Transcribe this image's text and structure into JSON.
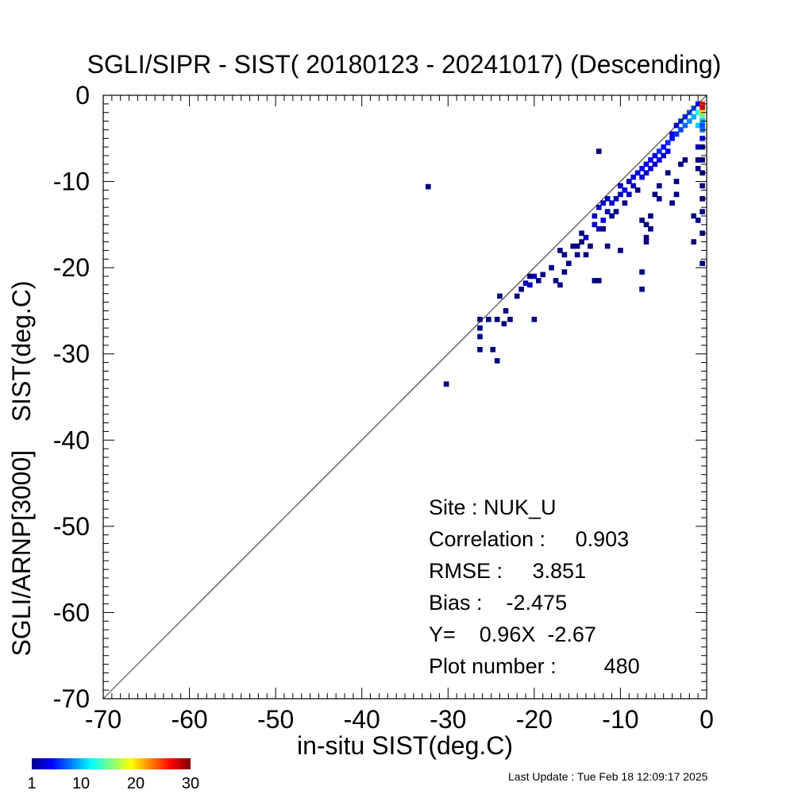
{
  "chart_data": {
    "type": "heatmap",
    "title": "SGLI/SIPR - SIST( 20180123 - 20241017) (Descending)",
    "xlabel": "in-situ SIST(deg.C)",
    "ylabel": "SGLI/ARNP[3000]    SIST(deg.C)",
    "xlim": [
      -70,
      0
    ],
    "ylim": [
      -70,
      0
    ],
    "xticks": [
      "-70",
      "-60",
      "-50",
      "-40",
      "-30",
      "-20",
      "-10",
      "0"
    ],
    "yticks": [
      "-70",
      "-60",
      "-50",
      "-40",
      "-30",
      "-20",
      "-10",
      "0"
    ],
    "reference_line": "y = x",
    "bin_size": 0.5,
    "colorbar": {
      "min": 1,
      "max": 30,
      "ticks": [
        "1",
        "10",
        "20",
        "30"
      ],
      "colormap": "jet"
    },
    "points": [
      {
        "x": -32.3,
        "y": -10.6,
        "count": 1
      },
      {
        "x": -30.2,
        "y": -33.5,
        "count": 1
      },
      {
        "x": -26.3,
        "y": -26.0,
        "count": 1
      },
      {
        "x": -26.3,
        "y": -27.0,
        "count": 1
      },
      {
        "x": -26.3,
        "y": -28.0,
        "count": 1
      },
      {
        "x": -26.3,
        "y": -29.5,
        "count": 1
      },
      {
        "x": -25.3,
        "y": -26.0,
        "count": 1
      },
      {
        "x": -24.8,
        "y": -29.5,
        "count": 1
      },
      {
        "x": -24.3,
        "y": -30.8,
        "count": 1
      },
      {
        "x": -24.0,
        "y": -23.3,
        "count": 1
      },
      {
        "x": -24.3,
        "y": -26.0,
        "count": 1
      },
      {
        "x": -23.5,
        "y": -26.5,
        "count": 1
      },
      {
        "x": -23.3,
        "y": -25.0,
        "count": 1
      },
      {
        "x": -22.8,
        "y": -26.0,
        "count": 1
      },
      {
        "x": -22.0,
        "y": -23.3,
        "count": 1
      },
      {
        "x": -21.5,
        "y": -22.5,
        "count": 1
      },
      {
        "x": -21.0,
        "y": -21.8,
        "count": 2
      },
      {
        "x": -20.5,
        "y": -22.0,
        "count": 2
      },
      {
        "x": -20.0,
        "y": -21.0,
        "count": 2
      },
      {
        "x": -20.5,
        "y": -21.0,
        "count": 1
      },
      {
        "x": -19.5,
        "y": -21.5,
        "count": 1
      },
      {
        "x": -19.0,
        "y": -20.8,
        "count": 1
      },
      {
        "x": -20.0,
        "y": -26.0,
        "count": 1
      },
      {
        "x": -18.0,
        "y": -20.0,
        "count": 1
      },
      {
        "x": -17.5,
        "y": -21.5,
        "count": 1
      },
      {
        "x": -17.0,
        "y": -22.0,
        "count": 1
      },
      {
        "x": -16.5,
        "y": -20.5,
        "count": 1
      },
      {
        "x": -16.0,
        "y": -19.5,
        "count": 1
      },
      {
        "x": -17.0,
        "y": -18.0,
        "count": 1
      },
      {
        "x": -16.5,
        "y": -18.5,
        "count": 1
      },
      {
        "x": -15.5,
        "y": -17.5,
        "count": 1
      },
      {
        "x": -15.0,
        "y": -17.5,
        "count": 1
      },
      {
        "x": -15.0,
        "y": -18.5,
        "count": 1
      },
      {
        "x": -14.5,
        "y": -17.0,
        "count": 1
      },
      {
        "x": -14.0,
        "y": -16.5,
        "count": 2
      },
      {
        "x": -14.5,
        "y": -16.0,
        "count": 1
      },
      {
        "x": -13.5,
        "y": -17.5,
        "count": 1
      },
      {
        "x": -13.0,
        "y": -15.0,
        "count": 2
      },
      {
        "x": -13.0,
        "y": -14.0,
        "count": 2
      },
      {
        "x": -12.5,
        "y": -15.5,
        "count": 2
      },
      {
        "x": -12.5,
        "y": -13.0,
        "count": 2
      },
      {
        "x": -12.0,
        "y": -14.5,
        "count": 3
      },
      {
        "x": -12.0,
        "y": -12.5,
        "count": 2
      },
      {
        "x": -12.0,
        "y": -15.5,
        "count": 1
      },
      {
        "x": -11.5,
        "y": -13.5,
        "count": 2
      },
      {
        "x": -11.5,
        "y": -12.0,
        "count": 2
      },
      {
        "x": -11.0,
        "y": -12.5,
        "count": 2
      },
      {
        "x": -11.0,
        "y": -14.0,
        "count": 1
      },
      {
        "x": -10.5,
        "y": -12.0,
        "count": 2
      },
      {
        "x": -10.5,
        "y": -13.5,
        "count": 1
      },
      {
        "x": -10.0,
        "y": -11.5,
        "count": 2
      },
      {
        "x": -10.0,
        "y": -10.5,
        "count": 2
      },
      {
        "x": -9.5,
        "y": -11.0,
        "count": 3
      },
      {
        "x": -9.5,
        "y": -12.5,
        "count": 1
      },
      {
        "x": -9.0,
        "y": -10.0,
        "count": 2
      },
      {
        "x": -9.0,
        "y": -11.5,
        "count": 2
      },
      {
        "x": -8.5,
        "y": -9.5,
        "count": 3
      },
      {
        "x": -8.5,
        "y": -10.5,
        "count": 2
      },
      {
        "x": -8.0,
        "y": -9.0,
        "count": 3
      },
      {
        "x": -8.0,
        "y": -11.0,
        "count": 1
      },
      {
        "x": -7.5,
        "y": -8.5,
        "count": 4
      },
      {
        "x": -7.5,
        "y": -9.5,
        "count": 3
      },
      {
        "x": -7.0,
        "y": -8.0,
        "count": 3
      },
      {
        "x": -7.0,
        "y": -9.0,
        "count": 2
      },
      {
        "x": -6.5,
        "y": -7.5,
        "count": 4
      },
      {
        "x": -6.5,
        "y": -8.5,
        "count": 3
      },
      {
        "x": -6.0,
        "y": -7.0,
        "count": 3
      },
      {
        "x": -6.0,
        "y": -8.0,
        "count": 2
      },
      {
        "x": -5.5,
        "y": -6.5,
        "count": 5
      },
      {
        "x": -5.5,
        "y": -7.5,
        "count": 3
      },
      {
        "x": -5.0,
        "y": -6.0,
        "count": 4
      },
      {
        "x": -5.0,
        "y": -7.0,
        "count": 2
      },
      {
        "x": -4.5,
        "y": -5.5,
        "count": 5
      },
      {
        "x": -4.5,
        "y": -6.5,
        "count": 3
      },
      {
        "x": -4.0,
        "y": -5.0,
        "count": 4
      },
      {
        "x": -4.0,
        "y": -4.5,
        "count": 3
      },
      {
        "x": -3.5,
        "y": -4.5,
        "count": 5
      },
      {
        "x": -3.5,
        "y": -3.5,
        "count": 4
      },
      {
        "x": -3.0,
        "y": -4.0,
        "count": 6
      },
      {
        "x": -3.0,
        "y": -3.0,
        "count": 5
      },
      {
        "x": -2.5,
        "y": -3.5,
        "count": 7
      },
      {
        "x": -2.5,
        "y": -2.5,
        "count": 5
      },
      {
        "x": -2.0,
        "y": -2.0,
        "count": 6
      },
      {
        "x": -2.0,
        "y": -3.0,
        "count": 8
      },
      {
        "x": -1.5,
        "y": -2.5,
        "count": 9
      },
      {
        "x": -1.5,
        "y": -1.5,
        "count": 6
      },
      {
        "x": -1.0,
        "y": -2.0,
        "count": 12
      },
      {
        "x": -1.0,
        "y": -3.5,
        "count": 10
      },
      {
        "x": -1.0,
        "y": -1.0,
        "count": 4
      },
      {
        "x": -0.5,
        "y": -1.0,
        "count": 25
      },
      {
        "x": -0.5,
        "y": -1.5,
        "count": 28
      },
      {
        "x": -0.5,
        "y": -2.0,
        "count": 20
      },
      {
        "x": -0.5,
        "y": -2.5,
        "count": 14
      },
      {
        "x": -0.5,
        "y": -3.0,
        "count": 9
      },
      {
        "x": -0.5,
        "y": -3.5,
        "count": 6
      },
      {
        "x": -0.5,
        "y": -4.0,
        "count": 7
      },
      {
        "x": -0.5,
        "y": -5.0,
        "count": 3
      },
      {
        "x": -0.5,
        "y": -6.0,
        "count": 1
      },
      {
        "x": -0.5,
        "y": -7.5,
        "count": 1
      },
      {
        "x": -0.5,
        "y": -9.0,
        "count": 1
      },
      {
        "x": -0.5,
        "y": -10.5,
        "count": 1
      },
      {
        "x": -0.5,
        "y": -12.0,
        "count": 1
      },
      {
        "x": -0.5,
        "y": -13.5,
        "count": 1
      },
      {
        "x": -0.5,
        "y": -16.0,
        "count": 1
      },
      {
        "x": -0.5,
        "y": -19.5,
        "count": 1
      },
      {
        "x": -1.0,
        "y": -6.0,
        "count": 2
      },
      {
        "x": -1.0,
        "y": -7.5,
        "count": 1
      },
      {
        "x": -1.0,
        "y": -8.5,
        "count": 1
      },
      {
        "x": -1.0,
        "y": -14.5,
        "count": 1
      },
      {
        "x": -1.5,
        "y": -17.0,
        "count": 1
      },
      {
        "x": -1.5,
        "y": -14.0,
        "count": 1
      },
      {
        "x": -2.5,
        "y": -7.5,
        "count": 1
      },
      {
        "x": -3.0,
        "y": -8.0,
        "count": 1
      },
      {
        "x": -3.5,
        "y": -10.0,
        "count": 1
      },
      {
        "x": -3.5,
        "y": -11.5,
        "count": 1
      },
      {
        "x": -4.0,
        "y": -12.5,
        "count": 1
      },
      {
        "x": -4.5,
        "y": -9.0,
        "count": 1
      },
      {
        "x": -5.5,
        "y": -10.5,
        "count": 1
      },
      {
        "x": -5.5,
        "y": -12.0,
        "count": 1
      },
      {
        "x": -6.0,
        "y": -11.5,
        "count": 1
      },
      {
        "x": -6.5,
        "y": -14.0,
        "count": 1
      },
      {
        "x": -6.5,
        "y": -15.5,
        "count": 1
      },
      {
        "x": -7.5,
        "y": -14.5,
        "count": 1
      },
      {
        "x": -7.0,
        "y": -15.0,
        "count": 1
      },
      {
        "x": -7.0,
        "y": -17.0,
        "count": 1
      },
      {
        "x": -7.0,
        "y": -16.5,
        "count": 1
      },
      {
        "x": -7.5,
        "y": -20.5,
        "count": 1
      },
      {
        "x": -7.5,
        "y": -22.5,
        "count": 1
      },
      {
        "x": -10.0,
        "y": -18.0,
        "count": 1
      },
      {
        "x": -11.5,
        "y": -17.5,
        "count": 1
      },
      {
        "x": -12.5,
        "y": -21.5,
        "count": 1
      },
      {
        "x": -12.5,
        "y": -6.5,
        "count": 1
      },
      {
        "x": -13.0,
        "y": -21.5,
        "count": 1
      },
      {
        "x": -14.0,
        "y": -18.5,
        "count": 1
      }
    ]
  },
  "stats": {
    "site": "Site : NUK_U",
    "correlation": "Correlation :     0.903",
    "rmse": "RMSE :     3.851",
    "bias": "Bias :    -2.475",
    "regression": "Y=    0.96X  -2.67",
    "plot_number": "Plot number :        480"
  },
  "footer": {
    "last_update": "Last Update : Tue Feb 18 12:09:17 2025"
  }
}
